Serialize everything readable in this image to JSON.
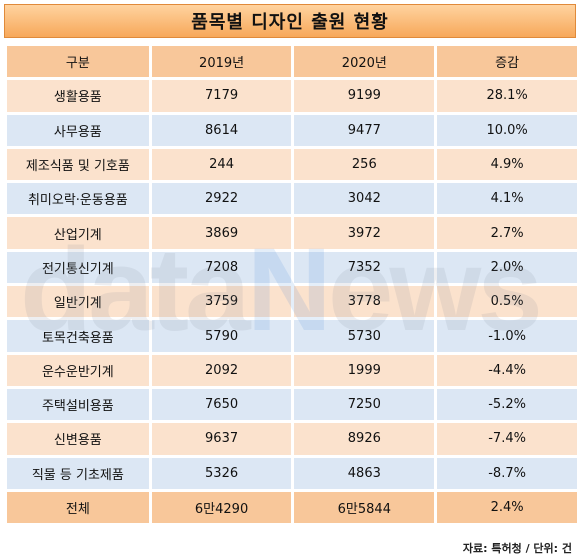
{
  "title": "품목별 디자인 출원 현황",
  "headers": [
    "구분",
    "2019년",
    "2020년",
    "증감"
  ],
  "rows": [
    {
      "label": "생활용품",
      "y2019": "7179",
      "y2020": "9199",
      "change": "28.1%"
    },
    {
      "label": "사무용품",
      "y2019": "8614",
      "y2020": "9477",
      "change": "10.0%"
    },
    {
      "label": "제조식품 및 기호품",
      "y2019": "244",
      "y2020": "256",
      "change": "4.9%"
    },
    {
      "label": "취미오락·운동용품",
      "y2019": "2922",
      "y2020": "3042",
      "change": "4.1%"
    },
    {
      "label": "산업기계",
      "y2019": "3869",
      "y2020": "3972",
      "change": "2.7%"
    },
    {
      "label": "전기통신기계",
      "y2019": "7208",
      "y2020": "7352",
      "change": "2.0%"
    },
    {
      "label": "일반기계",
      "y2019": "3759",
      "y2020": "3778",
      "change": "0.5%"
    },
    {
      "label": "토목건축용품",
      "y2019": "5790",
      "y2020": "5730",
      "change": "-1.0%"
    },
    {
      "label": "운수운반기계",
      "y2019": "2092",
      "y2020": "1999",
      "change": "-4.4%"
    },
    {
      "label": "주택설비용품",
      "y2019": "7650",
      "y2020": "7250",
      "change": "-5.2%"
    },
    {
      "label": "신변용품",
      "y2019": "9637",
      "y2020": "8926",
      "change": "-7.4%"
    },
    {
      "label": "직물 등 기초제품",
      "y2019": "5326",
      "y2020": "4863",
      "change": "-8.7%"
    }
  ],
  "total": {
    "label": "전체",
    "y2019": "6만4290",
    "y2020": "6만5844",
    "change": "2.4%"
  },
  "watermark": {
    "part1": "data",
    "part2": "N",
    "part3": "ews"
  },
  "source": "자료: 특허청 / 단위: 건",
  "colors": {
    "title_bg": "#f7a85a",
    "header_bg": "#f8c79a",
    "row_peach": "#fbe2cd",
    "row_blue": "#dce7f4"
  }
}
